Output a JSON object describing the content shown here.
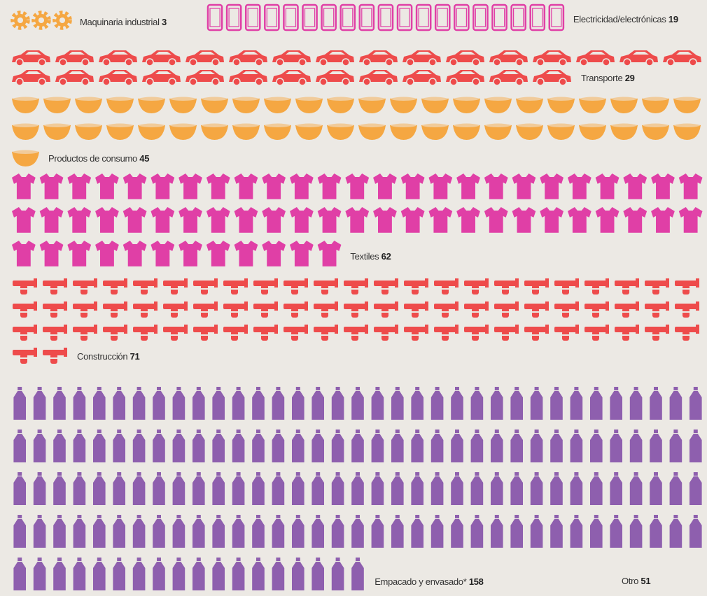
{
  "chart_data": {
    "type": "pictogram",
    "categories": [
      "Maquinaria industrial",
      "Electricidad/electrónicas",
      "Transporte",
      "Productos de consumo",
      "Textiles",
      "Construcción",
      "Empacado y envasado*",
      "Otro"
    ],
    "values": [
      3,
      19,
      29,
      45,
      62,
      71,
      158,
      51
    ],
    "series": [
      {
        "name": "Maquinaria industrial",
        "color": "#f5a742"
      },
      {
        "name": "Electricidad/electrónicas",
        "color": "#e03fa6"
      },
      {
        "name": "Transporte",
        "color": "#ee4b4b"
      },
      {
        "name": "Productos de consumo",
        "color": "#f5a742"
      },
      {
        "name": "Textiles",
        "color": "#e03fa6"
      },
      {
        "name": "Construcción",
        "color": "#ee4b4b"
      },
      {
        "name": "Empacado y envasado*",
        "color": "#8e5fae"
      },
      {
        "name": "Otro",
        "color": "#8e5fae"
      }
    ]
  }
}
